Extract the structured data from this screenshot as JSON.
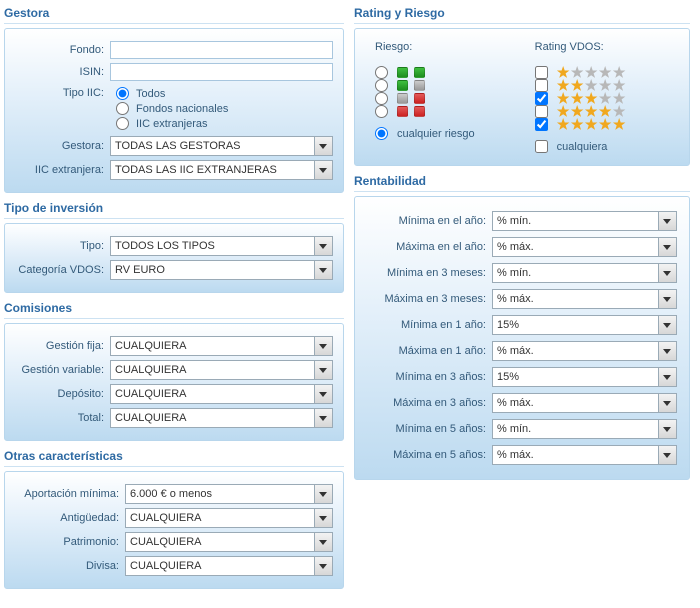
{
  "gestora": {
    "title": "Gestora",
    "fondo_label": "Fondo:",
    "isin_label": "ISIN:",
    "tipo_iic_label": "Tipo IIC:",
    "tipo_iic_options": {
      "todos": "Todos",
      "nacionales": "Fondos nacionales",
      "extranjeras": "IIC extranjeras"
    },
    "gestora_label": "Gestora:",
    "gestora_value": "TODAS LAS GESTORAS",
    "iic_ext_label": "IIC extranjera:",
    "iic_ext_value": "TODAS LAS IIC EXTRANJERAS",
    "fondo_value": "",
    "isin_value": ""
  },
  "tipo_inversion": {
    "title": "Tipo de inversión",
    "tipo_label": "Tipo:",
    "tipo_value": "TODOS LOS TIPOS",
    "cat_label": "Categoría VDOS:",
    "cat_value": "RV EURO"
  },
  "comisiones": {
    "title": "Comisiones",
    "fija_label": "Gestión fija:",
    "fija_value": "CUALQUIERA",
    "var_label": "Gestión variable:",
    "var_value": "CUALQUIERA",
    "dep_label": "Depósito:",
    "dep_value": "CUALQUIERA",
    "total_label": "Total:",
    "total_value": "CUALQUIERA"
  },
  "otras": {
    "title": "Otras características",
    "ap_label": "Aportación mínima:",
    "ap_value": "6.000 € o menos",
    "ant_label": "Antigüedad:",
    "ant_value": "CUALQUIERA",
    "pat_label": "Patrimonio:",
    "pat_value": "CUALQUIERA",
    "div_label": "Divisa:",
    "div_value": "CUALQUIERA"
  },
  "rating": {
    "title": "Rating y Riesgo",
    "riesgo_head": "Riesgo:",
    "rating_head": "Rating VDOS:",
    "cualquier_riesgo": "cualquier riesgo",
    "cualquiera": "cualquiera",
    "risk_rows": [
      {
        "squares": [
          "g",
          "g"
        ],
        "selected": false
      },
      {
        "squares": [
          "g",
          "gy"
        ],
        "selected": false
      },
      {
        "squares": [
          "gy",
          "r"
        ],
        "selected": false
      },
      {
        "squares": [
          "r",
          "r"
        ],
        "selected": false
      }
    ],
    "star_rows": [
      {
        "stars": 1,
        "checked": false
      },
      {
        "stars": 2,
        "checked": false
      },
      {
        "stars": 3,
        "checked": true
      },
      {
        "stars": 4,
        "checked": false
      },
      {
        "stars": 5,
        "checked": true
      }
    ],
    "cualquiera_checked": false,
    "cualquier_riesgo_selected": true
  },
  "rentabilidad": {
    "title": "Rentabilidad",
    "rows": [
      {
        "label": "Mínima en el año:",
        "value": "% mín."
      },
      {
        "label": "Máxima en el año:",
        "value": "% máx."
      },
      {
        "label": "Mínima en 3 meses:",
        "value": "% mín."
      },
      {
        "label": "Máxima en 3 meses:",
        "value": "% máx."
      },
      {
        "label": "Mínima en 1 año:",
        "value": "15%"
      },
      {
        "label": "Máxima en 1 año:",
        "value": "% máx."
      },
      {
        "label": "Mínima en 3 años:",
        "value": "15%"
      },
      {
        "label": "Máxima en 3 años:",
        "value": "% máx."
      },
      {
        "label": "Mínima en 5 años:",
        "value": "% mín."
      },
      {
        "label": "Máxima en 5 años:",
        "value": "% máx."
      }
    ]
  }
}
